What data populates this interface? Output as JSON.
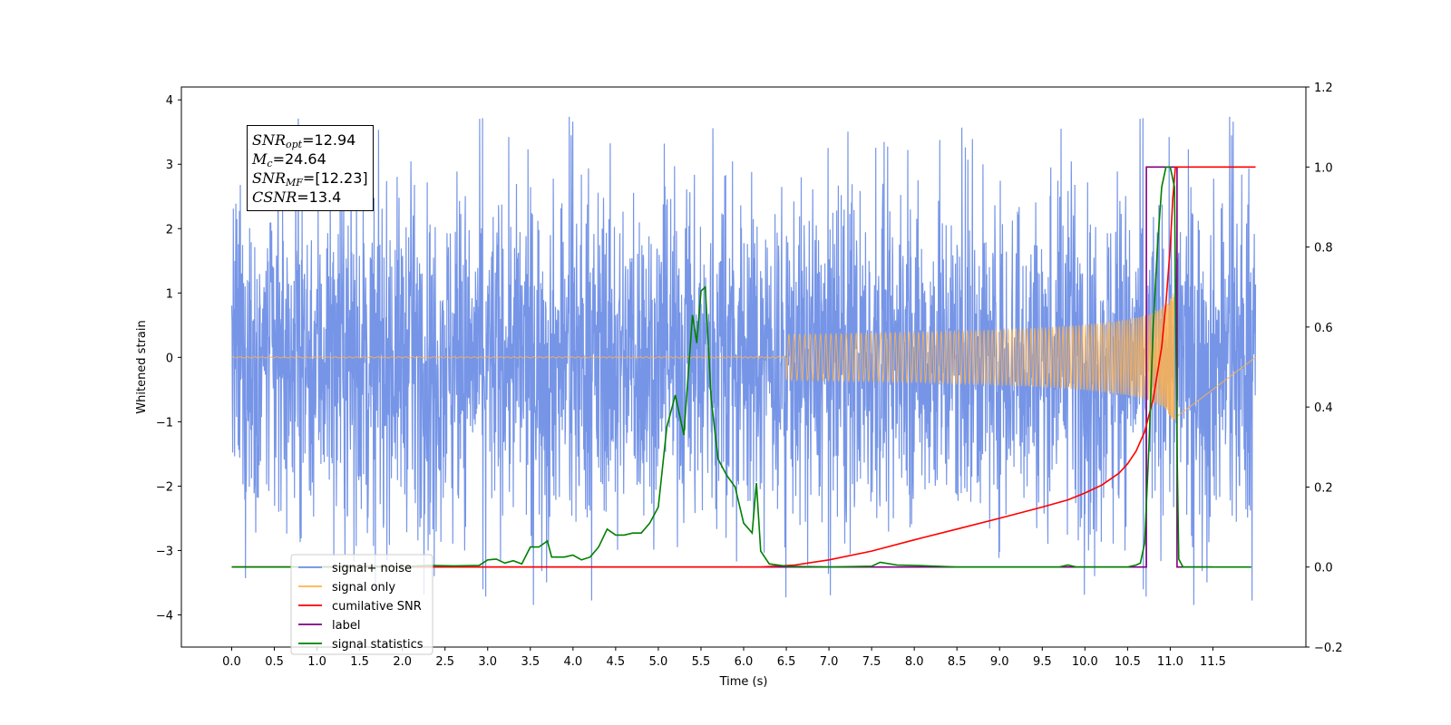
{
  "chart_data": {
    "type": "line",
    "xlabel": "Time (s)",
    "ylabel": "Whitened strain",
    "x_ticks": [
      0.0,
      0.5,
      1.0,
      1.5,
      2.0,
      2.5,
      3.0,
      3.5,
      4.0,
      4.5,
      5.0,
      5.5,
      6.0,
      6.5,
      7.0,
      7.5,
      8.0,
      8.5,
      9.0,
      9.5,
      10.0,
      10.5,
      11.0,
      11.5
    ],
    "x_tick_labels": [
      "0.0",
      "0.5",
      "1.0",
      "1.5",
      "2.0",
      "2.5",
      "3.0",
      "3.5",
      "4.0",
      "4.5",
      "5.0",
      "5.5",
      "6.0",
      "6.5",
      "7.0",
      "7.5",
      "8.0",
      "8.5",
      "9.0",
      "9.5",
      "10.0",
      "10.5",
      "11.0",
      "11.5"
    ],
    "xlim": [
      -0.59,
      12.59
    ],
    "ylim_left": [
      -4.5,
      4.2
    ],
    "y_ticks_left": [
      -4,
      -3,
      -2,
      -1,
      0,
      1,
      2,
      3,
      4
    ],
    "y_tick_labels_left": [
      "−4",
      "−3",
      "−2",
      "−1",
      "0",
      "1",
      "2",
      "3",
      "4"
    ],
    "ylim_right": [
      -0.2,
      1.2
    ],
    "y_ticks_right": [
      -0.2,
      0.0,
      0.2,
      0.4,
      0.6,
      0.8,
      1.0,
      1.2
    ],
    "y_tick_labels_right": [
      "−0.2",
      "0.0",
      "0.2",
      "0.4",
      "0.6",
      "0.8",
      "1.0",
      "1.2"
    ],
    "legend_position": "lower-left",
    "annotation": {
      "snr_opt": "12.94",
      "mc": "24.64",
      "snr_mf": "[12.23]",
      "csnr": "13.4"
    },
    "series": [
      {
        "name": "signal+ noise",
        "axis": "left",
        "color": "#6f8fe6",
        "kind": "noise",
        "x_range": [
          0.0,
          12.0
        ],
        "typical_amplitude": [
          -2.2,
          2.2
        ],
        "peak_amplitude": [
          -4.1,
          3.8
        ]
      },
      {
        "name": "signal only",
        "axis": "left",
        "color": "#ffb34d",
        "kind": "chirp",
        "x_range": [
          0.0,
          11.05
        ],
        "peak_amplitude": 1.1
      },
      {
        "name": "cumilative SNR",
        "axis": "right",
        "color": "#ff0000",
        "points": [
          [
            0,
            0
          ],
          [
            6.2,
            0
          ],
          [
            6.6,
            0.005
          ],
          [
            7.0,
            0.018
          ],
          [
            7.5,
            0.04
          ],
          [
            8.0,
            0.068
          ],
          [
            8.5,
            0.095
          ],
          [
            9.0,
            0.122
          ],
          [
            9.5,
            0.15
          ],
          [
            9.8,
            0.168
          ],
          [
            10.0,
            0.185
          ],
          [
            10.2,
            0.205
          ],
          [
            10.4,
            0.235
          ],
          [
            10.5,
            0.258
          ],
          [
            10.6,
            0.29
          ],
          [
            10.7,
            0.338
          ],
          [
            10.8,
            0.42
          ],
          [
            10.9,
            0.55
          ],
          [
            10.95,
            0.66
          ],
          [
            11.0,
            0.8
          ],
          [
            11.03,
            0.92
          ],
          [
            11.06,
            1.0
          ],
          [
            12.0,
            1.0
          ]
        ]
      },
      {
        "name": "label",
        "axis": "right",
        "color": "#800080",
        "points": [
          [
            0,
            0
          ],
          [
            10.72,
            0
          ],
          [
            10.72,
            1.0
          ],
          [
            11.08,
            1.0
          ],
          [
            11.08,
            0
          ],
          [
            11.5,
            0
          ]
        ]
      },
      {
        "name": "signal statistics",
        "axis": "right",
        "color": "#008000",
        "points": [
          [
            0,
            0
          ],
          [
            1.0,
            0
          ],
          [
            1.5,
            0.002
          ],
          [
            2.0,
            0.001
          ],
          [
            2.3,
            0.004
          ],
          [
            2.6,
            0.003
          ],
          [
            2.9,
            0.004
          ],
          [
            3.0,
            0.018
          ],
          [
            3.1,
            0.02
          ],
          [
            3.2,
            0.01
          ],
          [
            3.3,
            0.016
          ],
          [
            3.4,
            0.008
          ],
          [
            3.5,
            0.05
          ],
          [
            3.6,
            0.05
          ],
          [
            3.7,
            0.065
          ],
          [
            3.75,
            0.025
          ],
          [
            3.9,
            0.025
          ],
          [
            4.0,
            0.03
          ],
          [
            4.1,
            0.018
          ],
          [
            4.2,
            0.025
          ],
          [
            4.3,
            0.05
          ],
          [
            4.4,
            0.095
          ],
          [
            4.5,
            0.08
          ],
          [
            4.6,
            0.08
          ],
          [
            4.7,
            0.085
          ],
          [
            4.8,
            0.085
          ],
          [
            4.9,
            0.11
          ],
          [
            5.0,
            0.15
          ],
          [
            5.1,
            0.35
          ],
          [
            5.2,
            0.43
          ],
          [
            5.3,
            0.33
          ],
          [
            5.4,
            0.63
          ],
          [
            5.45,
            0.56
          ],
          [
            5.5,
            0.69
          ],
          [
            5.55,
            0.7
          ],
          [
            5.62,
            0.42
          ],
          [
            5.7,
            0.27
          ],
          [
            5.8,
            0.23
          ],
          [
            5.9,
            0.2
          ],
          [
            6.0,
            0.11
          ],
          [
            6.1,
            0.085
          ],
          [
            6.15,
            0.21
          ],
          [
            6.2,
            0.04
          ],
          [
            6.3,
            0.008
          ],
          [
            6.5,
            0.002
          ],
          [
            7.0,
            0.0
          ],
          [
            7.5,
            0.002
          ],
          [
            7.6,
            0.012
          ],
          [
            7.8,
            0.005
          ],
          [
            8.0,
            0.004
          ],
          [
            8.5,
            0.0
          ],
          [
            9.7,
            0.0
          ],
          [
            9.8,
            0.005
          ],
          [
            9.9,
            0.0
          ],
          [
            10.5,
            0.0
          ],
          [
            10.6,
            0.005
          ],
          [
            10.65,
            0.01
          ],
          [
            10.7,
            0.06
          ],
          [
            10.75,
            0.3
          ],
          [
            10.8,
            0.6
          ],
          [
            10.85,
            0.8
          ],
          [
            10.9,
            0.95
          ],
          [
            10.95,
            1.0
          ],
          [
            11.0,
            1.0
          ],
          [
            11.05,
            0.95
          ],
          [
            11.08,
            0.3
          ],
          [
            11.1,
            0.02
          ],
          [
            11.15,
            0.0
          ],
          [
            11.5,
            0.0
          ],
          [
            11.95,
            0.0
          ]
        ]
      }
    ]
  }
}
